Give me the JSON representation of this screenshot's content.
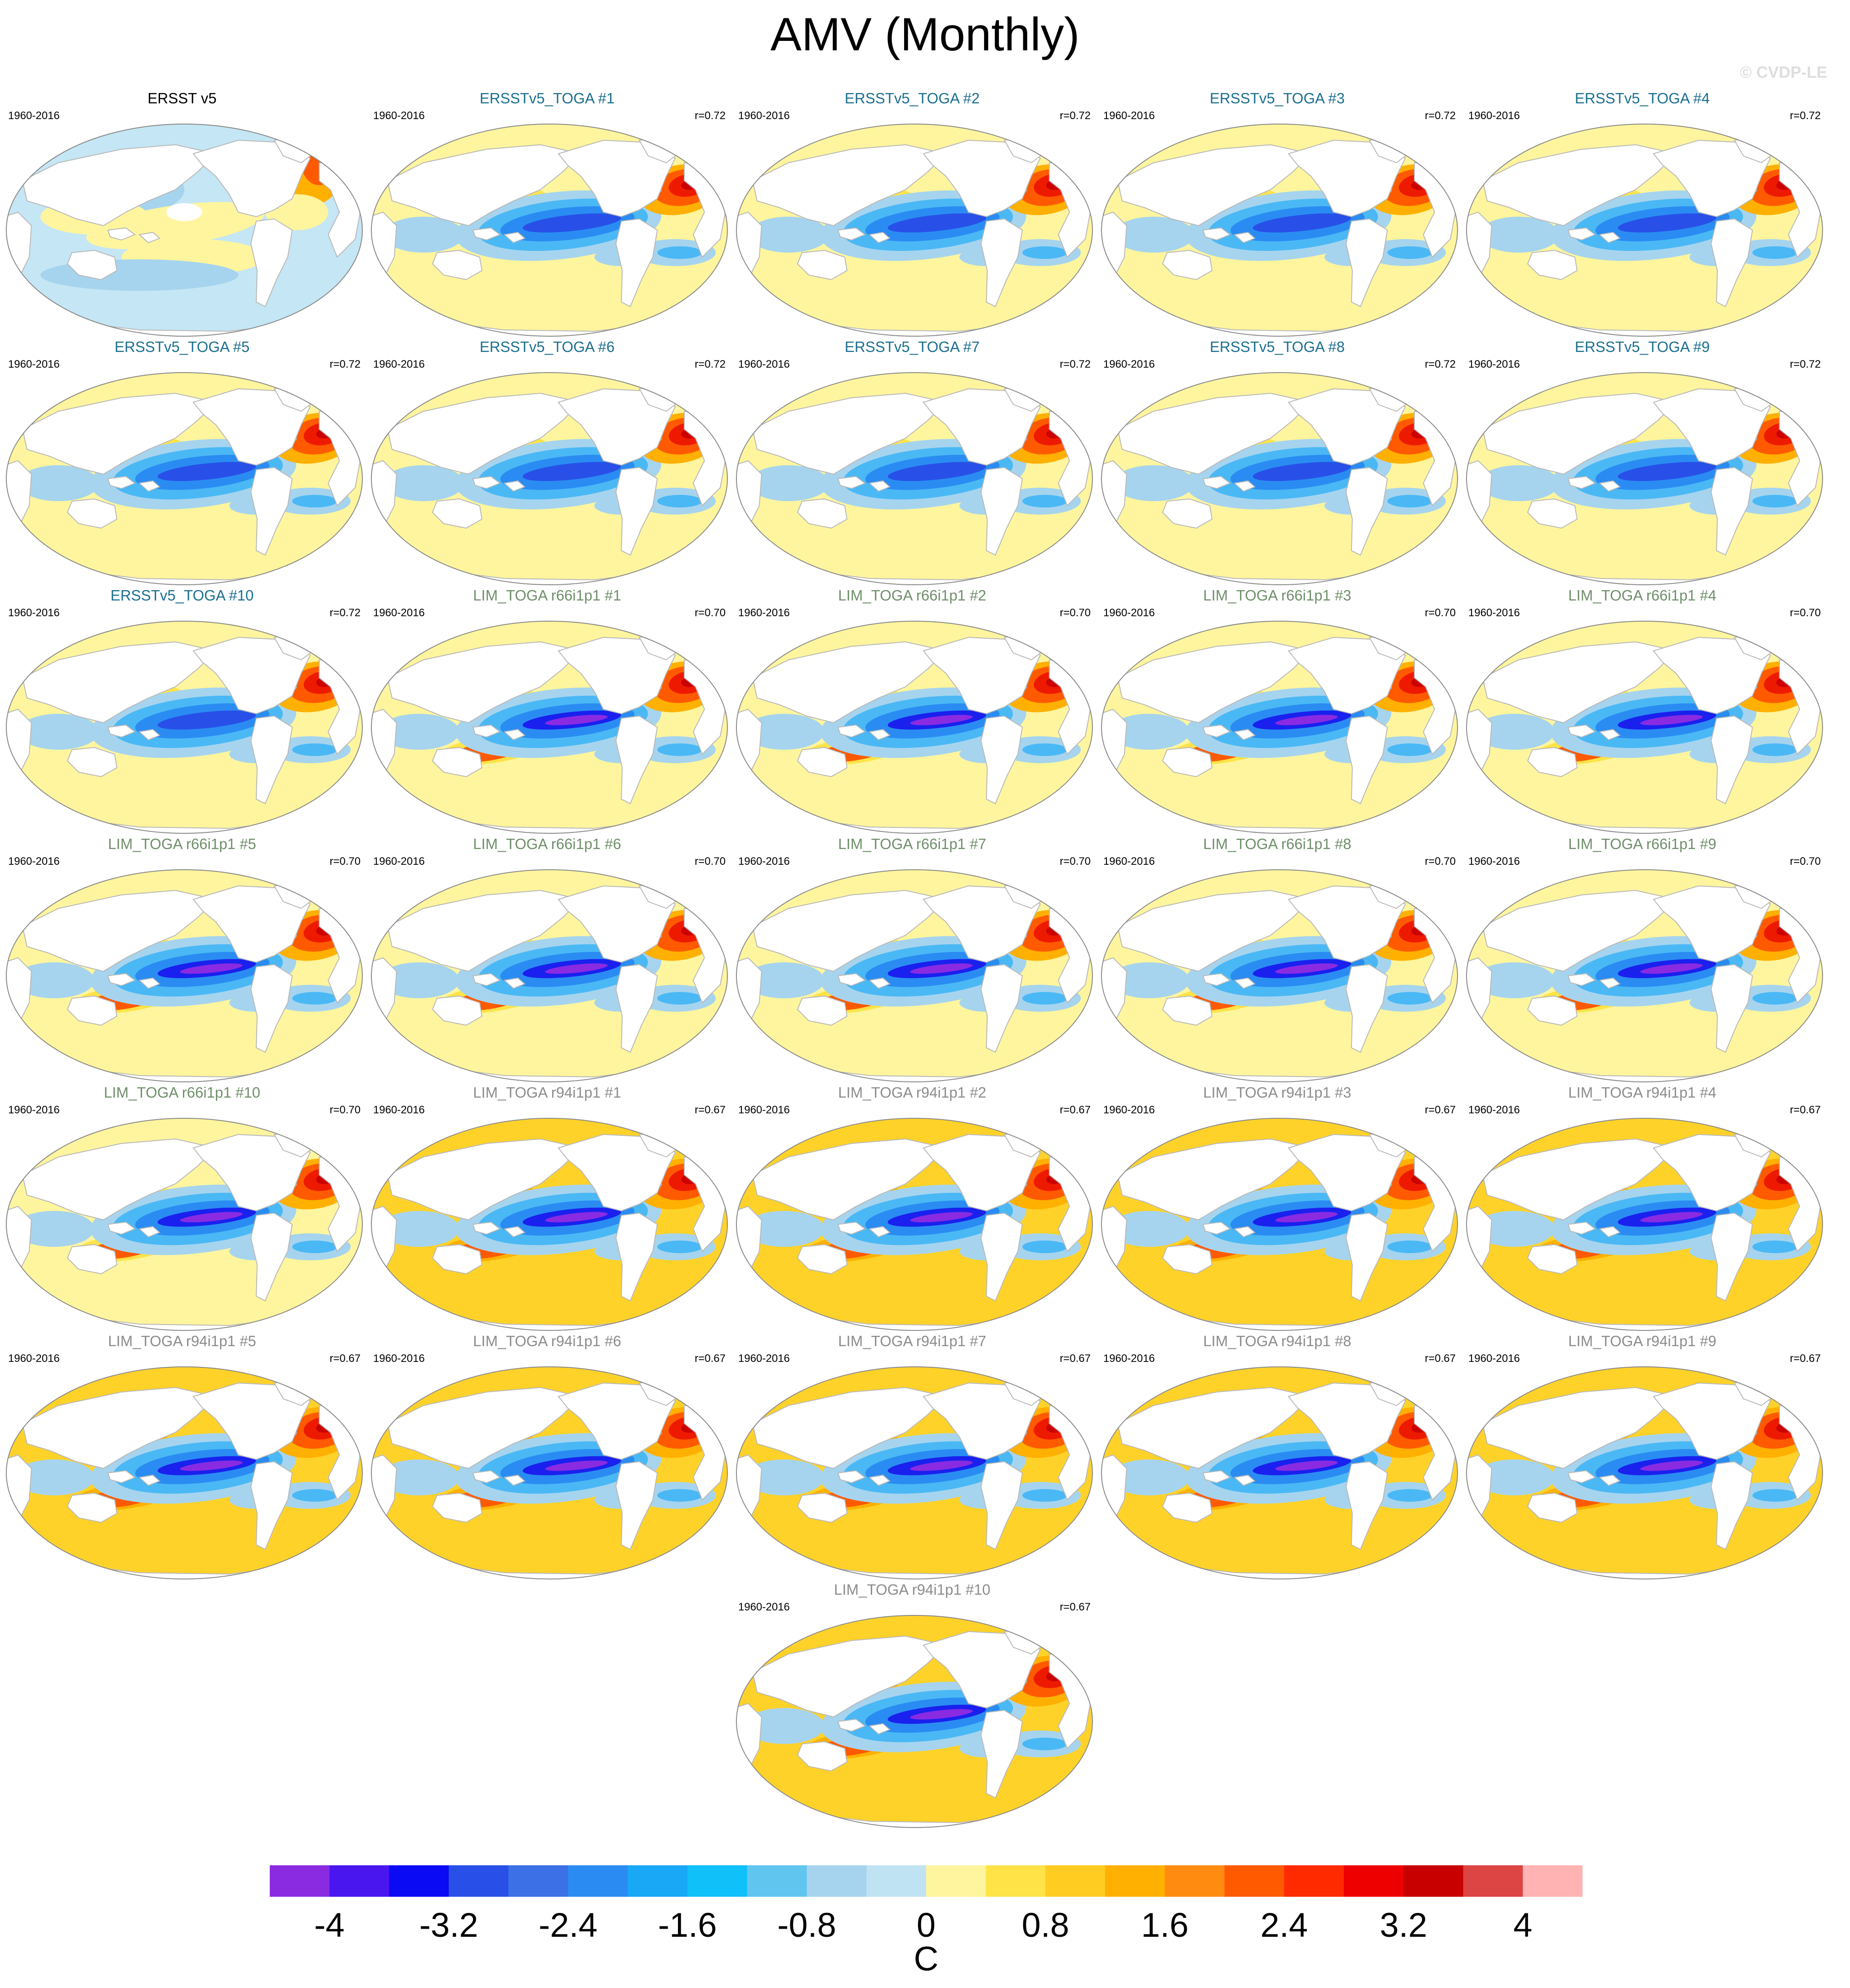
{
  "title": "AMV (Monthly)",
  "watermark": "© CVDP-LE",
  "panels": [
    {
      "title": "ERSST v5",
      "period": "1960-2016",
      "corr": "",
      "kind": "obs"
    },
    {
      "title": "ERSSTv5_TOGA #1",
      "period": "1960-2016",
      "corr": "r=0.72",
      "kind": "ersst"
    },
    {
      "title": "ERSSTv5_TOGA #2",
      "period": "1960-2016",
      "corr": "r=0.72",
      "kind": "ersst"
    },
    {
      "title": "ERSSTv5_TOGA #3",
      "period": "1960-2016",
      "corr": "r=0.72",
      "kind": "ersst"
    },
    {
      "title": "ERSSTv5_TOGA #4",
      "period": "1960-2016",
      "corr": "r=0.72",
      "kind": "ersst"
    },
    {
      "title": "ERSSTv5_TOGA #5",
      "period": "1960-2016",
      "corr": "r=0.72",
      "kind": "ersst"
    },
    {
      "title": "ERSSTv5_TOGA #6",
      "period": "1960-2016",
      "corr": "r=0.72",
      "kind": "ersst"
    },
    {
      "title": "ERSSTv5_TOGA #7",
      "period": "1960-2016",
      "corr": "r=0.72",
      "kind": "ersst"
    },
    {
      "title": "ERSSTv5_TOGA #8",
      "period": "1960-2016",
      "corr": "r=0.72",
      "kind": "ersst"
    },
    {
      "title": "ERSSTv5_TOGA #9",
      "period": "1960-2016",
      "corr": "r=0.72",
      "kind": "ersst"
    },
    {
      "title": "ERSSTv5_TOGA #10",
      "period": "1960-2016",
      "corr": "r=0.72",
      "kind": "ersst"
    },
    {
      "title": "LIM_TOGA r66i1p1 #1",
      "period": "1960-2016",
      "corr": "r=0.70",
      "kind": "r66"
    },
    {
      "title": "LIM_TOGA r66i1p1 #2",
      "period": "1960-2016",
      "corr": "r=0.70",
      "kind": "r66"
    },
    {
      "title": "LIM_TOGA r66i1p1 #3",
      "period": "1960-2016",
      "corr": "r=0.70",
      "kind": "r66"
    },
    {
      "title": "LIM_TOGA r66i1p1 #4",
      "period": "1960-2016",
      "corr": "r=0.70",
      "kind": "r66"
    },
    {
      "title": "LIM_TOGA r66i1p1 #5",
      "period": "1960-2016",
      "corr": "r=0.70",
      "kind": "r66"
    },
    {
      "title": "LIM_TOGA r66i1p1 #6",
      "period": "1960-2016",
      "corr": "r=0.70",
      "kind": "r66"
    },
    {
      "title": "LIM_TOGA r66i1p1 #7",
      "period": "1960-2016",
      "corr": "r=0.70",
      "kind": "r66"
    },
    {
      "title": "LIM_TOGA r66i1p1 #8",
      "period": "1960-2016",
      "corr": "r=0.70",
      "kind": "r66"
    },
    {
      "title": "LIM_TOGA r66i1p1 #9",
      "period": "1960-2016",
      "corr": "r=0.70",
      "kind": "r66"
    },
    {
      "title": "LIM_TOGA r66i1p1 #10",
      "period": "1960-2016",
      "corr": "r=0.70",
      "kind": "r66"
    },
    {
      "title": "LIM_TOGA r94i1p1 #1",
      "period": "1960-2016",
      "corr": "r=0.67",
      "kind": "r94"
    },
    {
      "title": "LIM_TOGA r94i1p1 #2",
      "period": "1960-2016",
      "corr": "r=0.67",
      "kind": "r94"
    },
    {
      "title": "LIM_TOGA r94i1p1 #3",
      "period": "1960-2016",
      "corr": "r=0.67",
      "kind": "r94"
    },
    {
      "title": "LIM_TOGA r94i1p1 #4",
      "period": "1960-2016",
      "corr": "r=0.67",
      "kind": "r94"
    },
    {
      "title": "LIM_TOGA r94i1p1 #5",
      "period": "1960-2016",
      "corr": "r=0.67",
      "kind": "r94"
    },
    {
      "title": "LIM_TOGA r94i1p1 #6",
      "period": "1960-2016",
      "corr": "r=0.67",
      "kind": "r94"
    },
    {
      "title": "LIM_TOGA r94i1p1 #7",
      "period": "1960-2016",
      "corr": "r=0.67",
      "kind": "r94"
    },
    {
      "title": "LIM_TOGA r94i1p1 #8",
      "period": "1960-2016",
      "corr": "r=0.67",
      "kind": "r94"
    },
    {
      "title": "LIM_TOGA r94i1p1 #9",
      "period": "1960-2016",
      "corr": "r=0.67",
      "kind": "r94"
    },
    {
      "title": "LIM_TOGA r94i1p1 #10",
      "period": "1960-2016",
      "corr": "r=0.67",
      "kind": "r94"
    }
  ],
  "title_colors": {
    "obs": "#000000",
    "ersst": "#1b6f8f",
    "r66": "#6f8f6a",
    "r94": "#8c8c8c"
  },
  "colorbar": {
    "colors": [
      "#8a2be2",
      "#4a16f0",
      "#0a0af5",
      "#2850e8",
      "#3c70e6",
      "#2a8cf2",
      "#18a8f5",
      "#10c0f8",
      "#60c6f0",
      "#a6d4ee",
      "#bfe3f2",
      "#fff59e",
      "#ffe347",
      "#ffcc22",
      "#ffb000",
      "#ff8c10",
      "#ff5a00",
      "#ff2a00",
      "#ee0000",
      "#c80000",
      "#dd4444",
      "#ffb3b3"
    ],
    "labels": [
      "-4",
      "-3.2",
      "-2.4",
      "-1.6",
      "-0.8",
      "0",
      "0.8",
      "1.6",
      "2.4",
      "3.2",
      "4"
    ],
    "units": "C"
  }
}
